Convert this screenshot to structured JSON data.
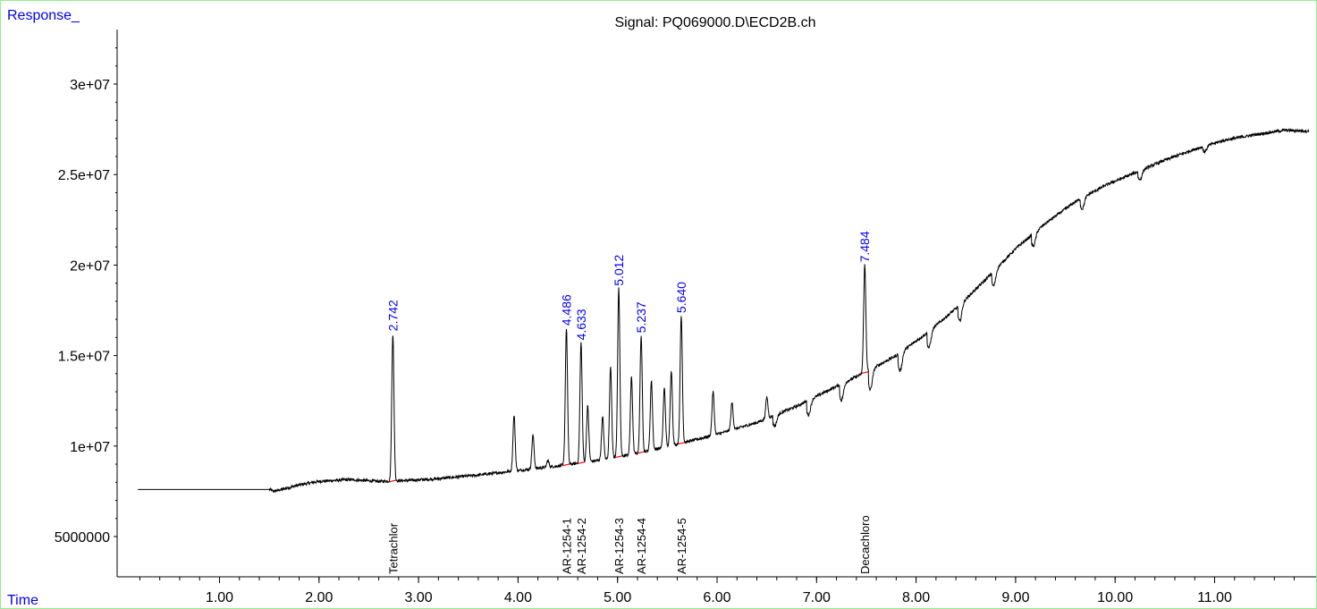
{
  "chart_data": {
    "type": "line",
    "title": "Signal: PQ069000.D\\ECD2B.ch",
    "ylabel": "Response_",
    "xlabel": "Time",
    "xlim": [
      0.18,
      11.95
    ],
    "ylim": [
      2500000,
      33000000
    ],
    "x_ticks": [
      1.0,
      2.0,
      3.0,
      4.0,
      5.0,
      6.0,
      7.0,
      8.0,
      9.0,
      10.0,
      11.0
    ],
    "x_tick_labels": [
      "1.00",
      "2.00",
      "3.00",
      "4.00",
      "5.00",
      "6.00",
      "7.00",
      "8.00",
      "9.00",
      "10.00",
      "11.00"
    ],
    "y_ticks": [
      5000000,
      10000000,
      15000000,
      20000000,
      25000000,
      30000000
    ],
    "y_tick_labels": [
      "5000000",
      "1e+07",
      "1.5e+07",
      "2e+07",
      "2.5e+07",
      "3e+07"
    ],
    "baseline": [
      [
        0.18,
        7600000
      ],
      [
        1.5,
        7600000
      ],
      [
        1.55,
        7500000
      ],
      [
        1.8,
        7850000
      ],
      [
        2.0,
        8050000
      ],
      [
        2.3,
        8150000
      ],
      [
        2.6,
        8050000
      ],
      [
        2.9,
        8100000
      ],
      [
        3.2,
        8200000
      ],
      [
        3.6,
        8400000
      ],
      [
        4.0,
        8650000
      ],
      [
        4.4,
        8900000
      ],
      [
        4.8,
        9200000
      ],
      [
        5.2,
        9600000
      ],
      [
        5.6,
        10100000
      ],
      [
        6.0,
        10650000
      ],
      [
        6.4,
        11300000
      ],
      [
        6.8,
        12200000
      ],
      [
        7.2,
        13300000
      ],
      [
        7.5,
        14100000
      ],
      [
        7.8,
        15000000
      ],
      [
        8.1,
        16200000
      ],
      [
        8.4,
        17600000
      ],
      [
        8.7,
        19200000
      ],
      [
        9.0,
        20900000
      ],
      [
        9.3,
        22300000
      ],
      [
        9.6,
        23500000
      ],
      [
        9.9,
        24400000
      ],
      [
        10.2,
        25100000
      ],
      [
        10.5,
        25800000
      ],
      [
        10.8,
        26400000
      ],
      [
        11.1,
        26900000
      ],
      [
        11.4,
        27200000
      ],
      [
        11.7,
        27450000
      ],
      [
        11.95,
        27400000
      ]
    ],
    "peaks": [
      {
        "rt": 2.742,
        "height": 16200000,
        "label": "2.742"
      },
      {
        "rt": 3.96,
        "height": 11700000
      },
      {
        "rt": 4.15,
        "height": 10600000
      },
      {
        "rt": 4.3,
        "height": 9200000
      },
      {
        "rt": 4.486,
        "height": 16500000,
        "label": "4.486"
      },
      {
        "rt": 4.633,
        "height": 15700000,
        "label": "4.633"
      },
      {
        "rt": 4.7,
        "height": 12200000
      },
      {
        "rt": 4.85,
        "height": 11600000
      },
      {
        "rt": 4.93,
        "height": 14400000
      },
      {
        "rt": 5.012,
        "height": 18700000,
        "label": "5.012"
      },
      {
        "rt": 5.14,
        "height": 13800000
      },
      {
        "rt": 5.237,
        "height": 16100000,
        "label": "5.237"
      },
      {
        "rt": 5.34,
        "height": 13600000
      },
      {
        "rt": 5.47,
        "height": 13200000
      },
      {
        "rt": 5.54,
        "height": 14200000
      },
      {
        "rt": 5.64,
        "height": 17200000,
        "label": "5.640"
      },
      {
        "rt": 5.96,
        "height": 13000000
      },
      {
        "rt": 6.15,
        "height": 12400000
      },
      {
        "rt": 6.5,
        "height": 12700000
      },
      {
        "rt": 7.484,
        "height": 20000000,
        "label": "7.484"
      }
    ],
    "dips": [
      {
        "rt": 6.58,
        "depth": 600000
      },
      {
        "rt": 6.92,
        "depth": 800000
      },
      {
        "rt": 7.25,
        "depth": 900000
      },
      {
        "rt": 7.54,
        "depth": 1100000
      },
      {
        "rt": 7.84,
        "depth": 1000000
      },
      {
        "rt": 8.13,
        "depth": 900000
      },
      {
        "rt": 8.44,
        "depth": 900000
      },
      {
        "rt": 8.78,
        "depth": 800000
      },
      {
        "rt": 9.18,
        "depth": 700000
      },
      {
        "rt": 9.67,
        "depth": 600000
      },
      {
        "rt": 10.25,
        "depth": 500000
      },
      {
        "rt": 10.9,
        "depth": 300000
      }
    ],
    "integration_marks": [
      2.742,
      4.486,
      4.633,
      5.012,
      5.237,
      5.64,
      7.484
    ],
    "compounds": [
      {
        "rt": 2.742,
        "name": "Tetrachlor"
      },
      {
        "rt": 4.486,
        "name": "AR-1254-1"
      },
      {
        "rt": 4.633,
        "name": "AR-1254-2"
      },
      {
        "rt": 5.012,
        "name": "AR-1254-3"
      },
      {
        "rt": 5.237,
        "name": "AR-1254-4"
      },
      {
        "rt": 5.64,
        "name": "AR-1254-5"
      },
      {
        "rt": 7.484,
        "name": "Decachloro"
      }
    ],
    "colors": {
      "trace": "#000000",
      "peak_label": "#0000ee",
      "corner_label": "#0000ee",
      "frame": "#90ee90",
      "integration": "#ff0000"
    }
  }
}
